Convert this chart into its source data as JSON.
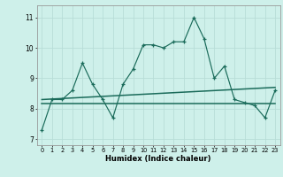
{
  "xlabel": "Humidex (Indice chaleur)",
  "x_values": [
    0,
    1,
    2,
    3,
    4,
    5,
    6,
    7,
    8,
    9,
    10,
    11,
    12,
    13,
    14,
    15,
    16,
    17,
    18,
    19,
    20,
    21,
    22,
    23
  ],
  "y_values": [
    7.3,
    8.3,
    8.3,
    8.6,
    9.5,
    8.8,
    8.3,
    7.7,
    8.8,
    9.3,
    10.1,
    10.1,
    10.0,
    10.2,
    10.2,
    11.0,
    10.3,
    9.0,
    9.4,
    8.3,
    8.2,
    8.1,
    7.7,
    8.6
  ],
  "line_color": "#1a6b5a",
  "bg_color": "#cef0ea",
  "grid_color": "#b8ddd8",
  "ylim": [
    6.8,
    11.4
  ],
  "xlim": [
    -0.5,
    23.5
  ],
  "reg1_y0": 8.17,
  "reg1_y1": 8.17,
  "reg2_y0": 8.3,
  "reg2_y1": 8.7
}
